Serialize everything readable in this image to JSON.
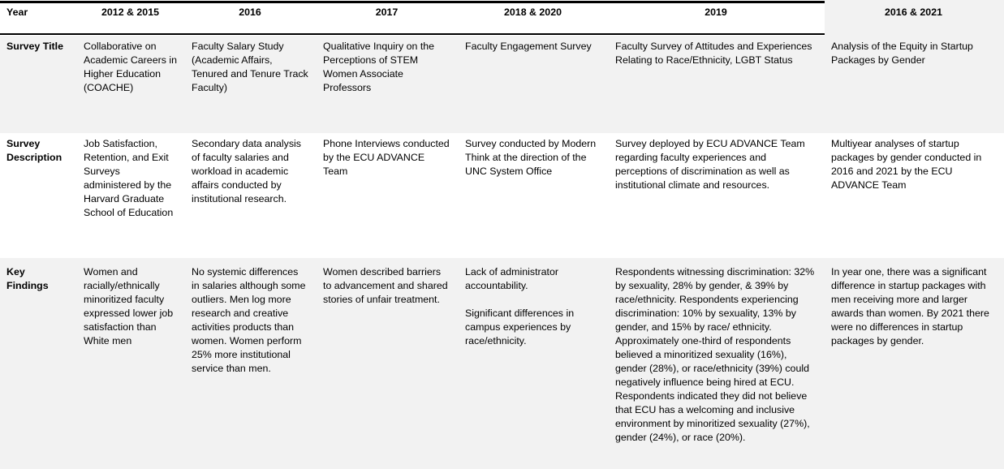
{
  "colors": {
    "band": "#f2f2f2",
    "border": "#000000",
    "text": "#000000"
  },
  "table": {
    "corner_label": "Year",
    "row_labels": [
      "Survey Title",
      "Survey Description",
      "Key Findings"
    ],
    "columns": [
      {
        "year": "2012 & 2015",
        "survey_title": "Collaborative on Academic Careers in Higher Education (COACHE)",
        "survey_description": "Job Satisfaction, Retention, and Exit Surveys administered by the Harvard Graduate School of Education",
        "key_findings": "Women and racially/ethnically minoritized faculty expressed lower job satisfaction than White men"
      },
      {
        "year": "2016",
        "survey_title": "Faculty Salary Study (Academic Affairs, Tenured and Tenure Track Faculty)",
        "survey_description": "Secondary data analysis of faculty salaries and workload in academic affairs conducted by institutional research.",
        "key_findings": "No systemic differences in salaries although some outliers. Men log more research and creative activities products than women. Women perform 25% more institutional service than men."
      },
      {
        "year": "2017",
        "survey_title": "Qualitative Inquiry on the Perceptions of STEM Women Associate Professors",
        "survey_description": "Phone Interviews conducted by the ECU ADVANCE Team",
        "key_findings": "Women described barriers to advancement and shared stories of unfair treatment."
      },
      {
        "year": "2018 & 2020",
        "survey_title": "Faculty Engagement Survey",
        "survey_description": "Survey conducted by Modern Think at the direction of the UNC System Office",
        "key_findings": "Lack of administrator accountability.\n\nSignificant differences in campus experiences by race/ethnicity."
      },
      {
        "year": "2019",
        "survey_title": "Faculty Survey of Attitudes and Experiences Relating to Race/Ethnicity, LGBT Status",
        "survey_description": "Survey deployed by ECU ADVANCE Team regarding faculty experiences and perceptions of discrimination as well as institutional climate and resources.",
        "key_findings": "Respondents witnessing discrimination: 32% by sexuality, 28% by gender, & 39% by race/ethnicity. Respondents experiencing discrimination: 10% by sexuality, 13% by gender, and 15% by race/ ethnicity. Approximately one-third of respondents believed a minoritized sexuality (16%), gender (28%), or race/ethnicity (39%) could negatively influence being hired at ECU. Respondents indicated they did not believe that ECU has a welcoming and inclusive environment by minoritized sexuality (27%), gender (24%), or race (20%)."
      },
      {
        "year": "2016 & 2021",
        "survey_title": "Analysis of the Equity in Startup Packages by Gender",
        "survey_description": "Multiyear analyses of startup packages by gender conducted in 2016 and 2021 by the ECU ADVANCE Team",
        "key_findings": "In year one, there was a significant difference in startup packages with men receiving more and larger awards than women. By 2021 there were no differences in startup packages by gender."
      }
    ]
  }
}
